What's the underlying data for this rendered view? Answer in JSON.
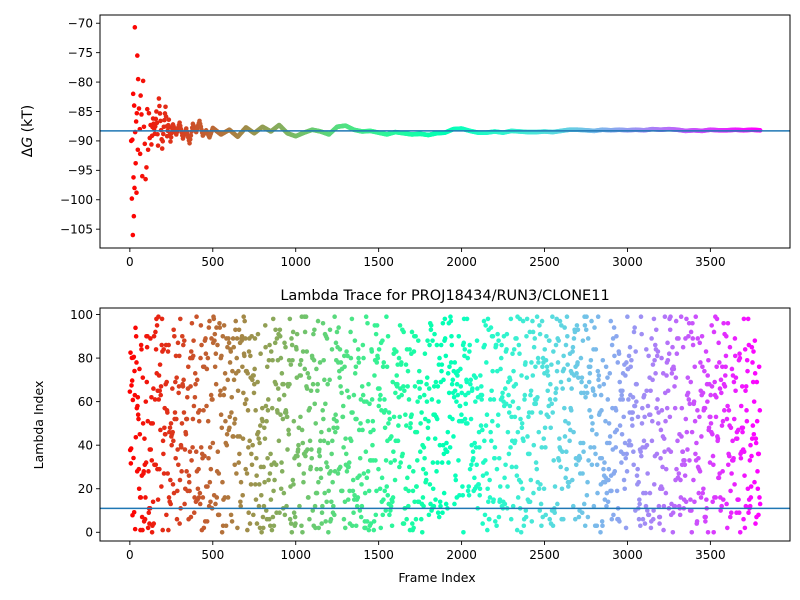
{
  "chart_data": [
    {
      "type": "scatter",
      "title": "",
      "xlabel": "",
      "ylabel_prefix": "Δ",
      "ylabel_var": "G",
      "ylabel_suffix": " (kT)",
      "xlim": [
        -180,
        3980
      ],
      "ylim": [
        -108.2,
        -68.6
      ],
      "xticks": [
        0,
        500,
        1000,
        1500,
        2000,
        2500,
        3000,
        3500
      ],
      "xtick_labels": [
        "0",
        "500",
        "1000",
        "1500",
        "2000",
        "2500",
        "3000",
        "3500"
      ],
      "yticks": [
        -70,
        -75,
        -80,
        -85,
        -90,
        -95,
        -100,
        -105
      ],
      "ytick_labels": [
        "−70",
        "−75",
        "−80",
        "−85",
        "−90",
        "−95",
        "−100",
        "−105"
      ],
      "hline": -88.3,
      "hline_color": "#1f77b4",
      "colormap": "rainbow",
      "x_max": 3800,
      "series": [
        {
          "points": [
            [
              8,
              -90
            ],
            [
              12,
              -99.8
            ],
            [
              15,
              -89.8
            ],
            [
              18,
              -106
            ],
            [
              20,
              -82
            ],
            [
              22,
              -96.2
            ],
            [
              24,
              -102.8
            ],
            [
              26,
              -84
            ],
            [
              28,
              -98
            ],
            [
              30,
              -70.7
            ],
            [
              32,
              -88.5
            ],
            [
              35,
              -93.8
            ],
            [
              38,
              -86.7
            ],
            [
              40,
              -98.8
            ],
            [
              42,
              -85.3
            ],
            [
              45,
              -75.5
            ],
            [
              48,
              -91.5
            ],
            [
              50,
              -79.5
            ],
            [
              55,
              -84.5
            ],
            [
              60,
              -88
            ],
            [
              62,
              -92.2
            ],
            [
              65,
              -82.3
            ],
            [
              70,
              -85.5
            ],
            [
              75,
              -96
            ],
            [
              80,
              -79.8
            ],
            [
              85,
              -87.6
            ],
            [
              90,
              -90.5
            ],
            [
              95,
              -96.5
            ],
            [
              100,
              -94.5
            ],
            [
              105,
              -84.6
            ],
            [
              110,
              -91.5
            ],
            [
              115,
              -85.3
            ],
            [
              120,
              -89.5
            ],
            [
              125,
              -87.3
            ],
            [
              130,
              -90.6
            ],
            [
              140,
              -86.2
            ],
            [
              150,
              -88.8
            ],
            [
              160,
              -85
            ],
            [
              170,
              -90.8
            ],
            [
              175,
              -82.8
            ],
            [
              185,
              -86.6
            ],
            [
              195,
              -91.3
            ],
            [
              205,
              -87.6
            ],
            [
              215,
              -84.2
            ],
            [
              225,
              -89.2
            ],
            [
              235,
              -86.4
            ],
            [
              245,
              -90.1
            ],
            [
              260,
              -87.2
            ],
            [
              280,
              -88.9
            ],
            [
              300,
              -86.9
            ],
            [
              320,
              -89.6
            ],
            [
              340,
              -87.9
            ],
            [
              360,
              -90.4
            ],
            [
              380,
              -87.1
            ],
            [
              400,
              -88.5
            ],
            [
              420,
              -86.6
            ],
            [
              440,
              -89.1
            ],
            [
              460,
              -88.2
            ],
            [
              480,
              -89.4
            ],
            [
              500,
              -87.8
            ],
            [
              550,
              -88.9
            ],
            [
              600,
              -88.1
            ],
            [
              650,
              -89.3
            ],
            [
              700,
              -87.7
            ],
            [
              750,
              -88.7
            ],
            [
              800,
              -87.6
            ],
            [
              850,
              -88.4
            ],
            [
              900,
              -87.3
            ],
            [
              950,
              -88.7
            ],
            [
              1000,
              -89.2
            ],
            [
              1050,
              -88.6
            ],
            [
              1100,
              -88.1
            ],
            [
              1150,
              -88.4
            ],
            [
              1200,
              -88.9
            ],
            [
              1250,
              -87.6
            ],
            [
              1300,
              -87.4
            ],
            [
              1350,
              -88.1
            ],
            [
              1400,
              -88.4
            ],
            [
              1450,
              -88.3
            ],
            [
              1500,
              -88.6
            ],
            [
              1550,
              -88.9
            ],
            [
              1600,
              -88.5
            ],
            [
              1650,
              -88.7
            ],
            [
              1700,
              -88.9
            ],
            [
              1750,
              -88.8
            ],
            [
              1800,
              -89
            ],
            [
              1850,
              -88.7
            ],
            [
              1900,
              -88.6
            ],
            [
              1950,
              -88
            ],
            [
              2000,
              -87.9
            ],
            [
              2050,
              -88.3
            ],
            [
              2100,
              -88.6
            ],
            [
              2150,
              -88.6
            ],
            [
              2200,
              -88.4
            ],
            [
              2250,
              -88.6
            ],
            [
              2300,
              -88.3
            ],
            [
              2350,
              -88.4
            ],
            [
              2400,
              -88.5
            ],
            [
              2450,
              -88.5
            ],
            [
              2500,
              -88.4
            ],
            [
              2550,
              -88.5
            ],
            [
              2600,
              -88.3
            ],
            [
              2650,
              -88.1
            ],
            [
              2700,
              -88.1
            ],
            [
              2750,
              -88.2
            ],
            [
              2800,
              -88.3
            ],
            [
              2850,
              -88.1
            ],
            [
              2900,
              -88.2
            ],
            [
              2950,
              -88.1
            ],
            [
              3000,
              -88.2
            ],
            [
              3050,
              -88.1
            ],
            [
              3100,
              -88.2
            ],
            [
              3150,
              -88
            ],
            [
              3200,
              -88.1
            ],
            [
              3250,
              -88
            ],
            [
              3300,
              -88.1
            ],
            [
              3350,
              -88.3
            ],
            [
              3400,
              -88.2
            ],
            [
              3450,
              -88.3
            ],
            [
              3500,
              -88.1
            ],
            [
              3550,
              -88.2
            ],
            [
              3600,
              -88.2
            ],
            [
              3650,
              -88.1
            ],
            [
              3700,
              -88.2
            ],
            [
              3750,
              -88.1
            ],
            [
              3800,
              -88.2
            ]
          ]
        }
      ]
    },
    {
      "type": "scatter",
      "title": "Lambda Trace for PROJ18434/RUN3/CLONE11",
      "xlabel": "Frame Index",
      "ylabel": "Lambda Index",
      "xlim": [
        -180,
        3980
      ],
      "ylim": [
        -4,
        103
      ],
      "xticks": [
        0,
        500,
        1000,
        1500,
        2000,
        2500,
        3000,
        3500
      ],
      "xtick_labels": [
        "0",
        "500",
        "1000",
        "1500",
        "2000",
        "2500",
        "3000",
        "3500"
      ],
      "yticks": [
        0,
        20,
        40,
        60,
        80,
        100
      ],
      "ytick_labels": [
        "0",
        "20",
        "40",
        "60",
        "80",
        "100"
      ],
      "hline": 11,
      "hline_color": "#1f77b4",
      "colormap": "rainbow",
      "x_range": [
        0,
        3800
      ],
      "y_range": [
        0,
        99
      ],
      "n_points": 3800,
      "marker": "dot"
    }
  ]
}
